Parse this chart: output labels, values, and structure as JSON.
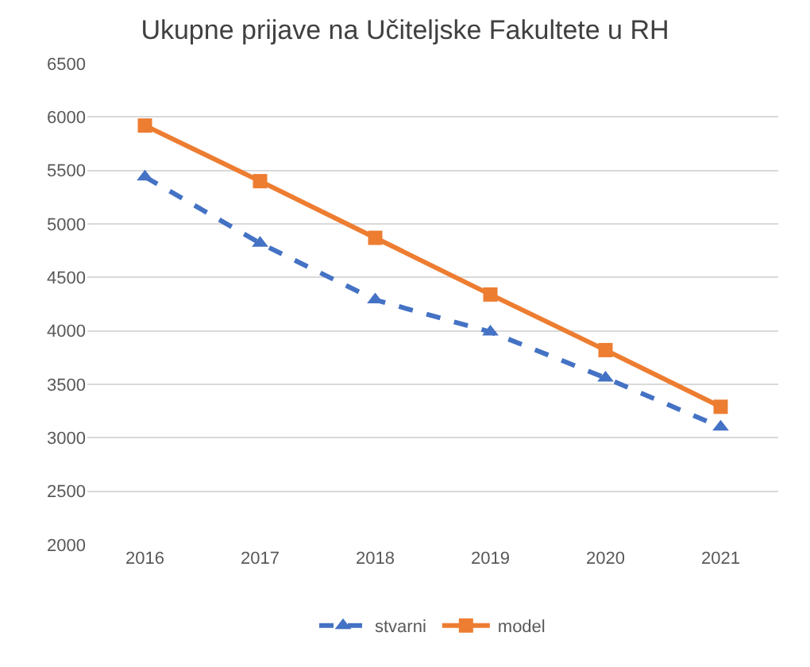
{
  "chart_data": {
    "type": "line",
    "title": "Ukupne prijave na Učiteljske Fakultete u RH",
    "categories": [
      "2016",
      "2017",
      "2018",
      "2019",
      "2020",
      "2021"
    ],
    "series": [
      {
        "name": "stvarni",
        "color": "#4472c4",
        "marker": "triangle",
        "line_style": "dashed",
        "values": [
          5440,
          4820,
          4290,
          3990,
          3560,
          3100
        ]
      },
      {
        "name": "model",
        "color": "#ed7d31",
        "marker": "square",
        "line_style": "solid",
        "values": [
          5920,
          5400,
          4870,
          4340,
          3820,
          3290
        ]
      }
    ],
    "ylim": [
      2000,
      6500
    ],
    "yticks": [
      2000,
      2500,
      3000,
      3500,
      4000,
      4500,
      5000,
      5500,
      6000,
      6500
    ],
    "grid": "y",
    "legend": "bottom"
  }
}
